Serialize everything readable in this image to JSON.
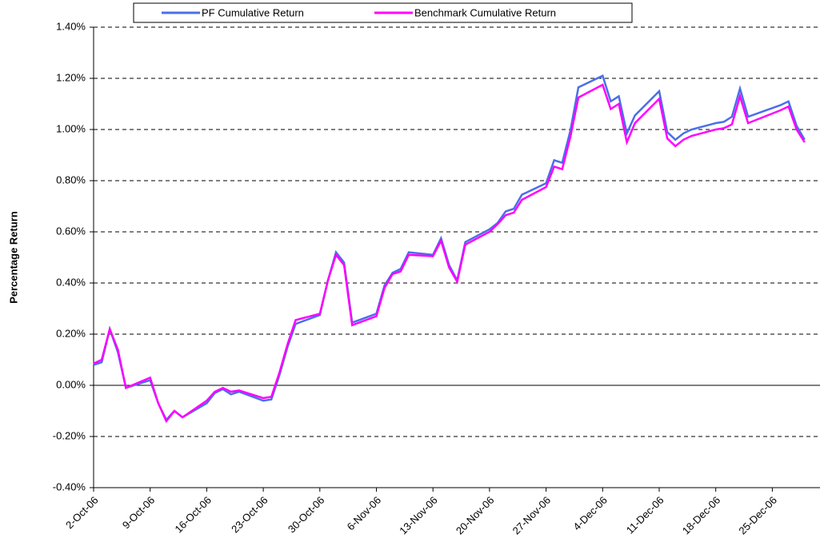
{
  "chart_data": {
    "type": "line",
    "y_label": "Percentage Return",
    "x": [
      "2006-10-02",
      "2006-10-03",
      "2006-10-04",
      "2006-10-05",
      "2006-10-06",
      "2006-10-09",
      "2006-10-10",
      "2006-10-11",
      "2006-10-12",
      "2006-10-13",
      "2006-10-16",
      "2006-10-17",
      "2006-10-18",
      "2006-10-19",
      "2006-10-20",
      "2006-10-23",
      "2006-10-24",
      "2006-10-25",
      "2006-10-26",
      "2006-10-27",
      "2006-10-30",
      "2006-10-31",
      "2006-11-01",
      "2006-11-02",
      "2006-11-03",
      "2006-11-06",
      "2006-11-07",
      "2006-11-08",
      "2006-11-09",
      "2006-11-10",
      "2006-11-13",
      "2006-11-14",
      "2006-11-15",
      "2006-11-16",
      "2006-11-17",
      "2006-11-20",
      "2006-11-21",
      "2006-11-22",
      "2006-11-23",
      "2006-11-24",
      "2006-11-27",
      "2006-11-28",
      "2006-11-29",
      "2006-11-30",
      "2006-12-01",
      "2006-12-04",
      "2006-12-05",
      "2006-12-06",
      "2006-12-07",
      "2006-12-08",
      "2006-12-11",
      "2006-12-12",
      "2006-12-13",
      "2006-12-14",
      "2006-12-15",
      "2006-12-18",
      "2006-12-19",
      "2006-12-20",
      "2006-12-21",
      "2006-12-22",
      "2006-12-26",
      "2006-12-27",
      "2006-12-28",
      "2006-12-29"
    ],
    "series": [
      {
        "name": "PF Cumulative Return",
        "color": "#4a6fe8",
        "values": [
          0.08,
          0.09,
          0.22,
          0.13,
          -0.01,
          0.02,
          -0.07,
          -0.135,
          -0.1,
          -0.125,
          -0.07,
          -0.03,
          -0.015,
          -0.035,
          -0.025,
          -0.06,
          -0.055,
          0.04,
          0.15,
          0.24,
          0.275,
          0.41,
          0.52,
          0.48,
          0.245,
          0.28,
          0.39,
          0.44,
          0.455,
          0.52,
          0.51,
          0.575,
          0.47,
          0.41,
          0.56,
          0.61,
          0.635,
          0.68,
          0.69,
          0.745,
          0.79,
          0.88,
          0.87,
          0.995,
          1.165,
          1.21,
          1.11,
          1.13,
          0.985,
          1.055,
          1.15,
          0.99,
          0.96,
          0.985,
          1.0,
          1.025,
          1.03,
          1.05,
          1.16,
          1.05,
          1.095,
          1.11,
          1.015,
          0.96
        ]
      },
      {
        "name": "Benchmark Cumulative Return",
        "color": "#ff00ff",
        "values": [
          0.085,
          0.1,
          0.22,
          0.14,
          -0.01,
          0.03,
          -0.07,
          -0.14,
          -0.1,
          -0.125,
          -0.06,
          -0.025,
          -0.01,
          -0.025,
          -0.02,
          -0.05,
          -0.045,
          0.05,
          0.16,
          0.255,
          0.28,
          0.41,
          0.51,
          0.47,
          0.235,
          0.27,
          0.38,
          0.435,
          0.445,
          0.51,
          0.505,
          0.565,
          0.46,
          0.405,
          0.55,
          0.6,
          0.63,
          0.665,
          0.675,
          0.725,
          0.775,
          0.855,
          0.845,
          0.97,
          1.125,
          1.175,
          1.08,
          1.1,
          0.95,
          1.025,
          1.12,
          0.965,
          0.935,
          0.96,
          0.975,
          1.0,
          1.005,
          1.02,
          1.13,
          1.025,
          1.075,
          1.09,
          1.0,
          0.95
        ]
      }
    ],
    "xlim": [
      "2006-10-02",
      "2006-12-31"
    ],
    "xticks": [
      {
        "value": "2006-10-02",
        "label": "2-Oct-06"
      },
      {
        "value": "2006-10-09",
        "label": "9-Oct-06"
      },
      {
        "value": "2006-10-16",
        "label": "16-Oct-06"
      },
      {
        "value": "2006-10-23",
        "label": "23-Oct-06"
      },
      {
        "value": "2006-10-30",
        "label": "30-Oct-06"
      },
      {
        "value": "2006-11-06",
        "label": "6-Nov-06"
      },
      {
        "value": "2006-11-13",
        "label": "13-Nov-06"
      },
      {
        "value": "2006-11-20",
        "label": "20-Nov-06"
      },
      {
        "value": "2006-11-27",
        "label": "27-Nov-06"
      },
      {
        "value": "2006-12-04",
        "label": "4-Dec-06"
      },
      {
        "value": "2006-12-11",
        "label": "11-Dec-06"
      },
      {
        "value": "2006-12-18",
        "label": "18-Dec-06"
      },
      {
        "value": "2006-12-25",
        "label": "25-Dec-06"
      }
    ],
    "ylim": [
      -0.4,
      1.4
    ],
    "yticks": [
      {
        "value": -0.4,
        "label": "-0.40%"
      },
      {
        "value": -0.2,
        "label": "-0.20%"
      },
      {
        "value": 0,
        "label": "0.00%"
      },
      {
        "value": 0.2,
        "label": "0.20%"
      },
      {
        "value": 0.4,
        "label": "0.40%"
      },
      {
        "value": 0.6,
        "label": "0.60%"
      },
      {
        "value": 0.8,
        "label": "0.80%"
      },
      {
        "value": 1.0,
        "label": "1.00%"
      },
      {
        "value": 1.2,
        "label": "1.20%"
      },
      {
        "value": 1.4,
        "label": "1.40%"
      }
    ],
    "grid": true,
    "legend": "top"
  }
}
